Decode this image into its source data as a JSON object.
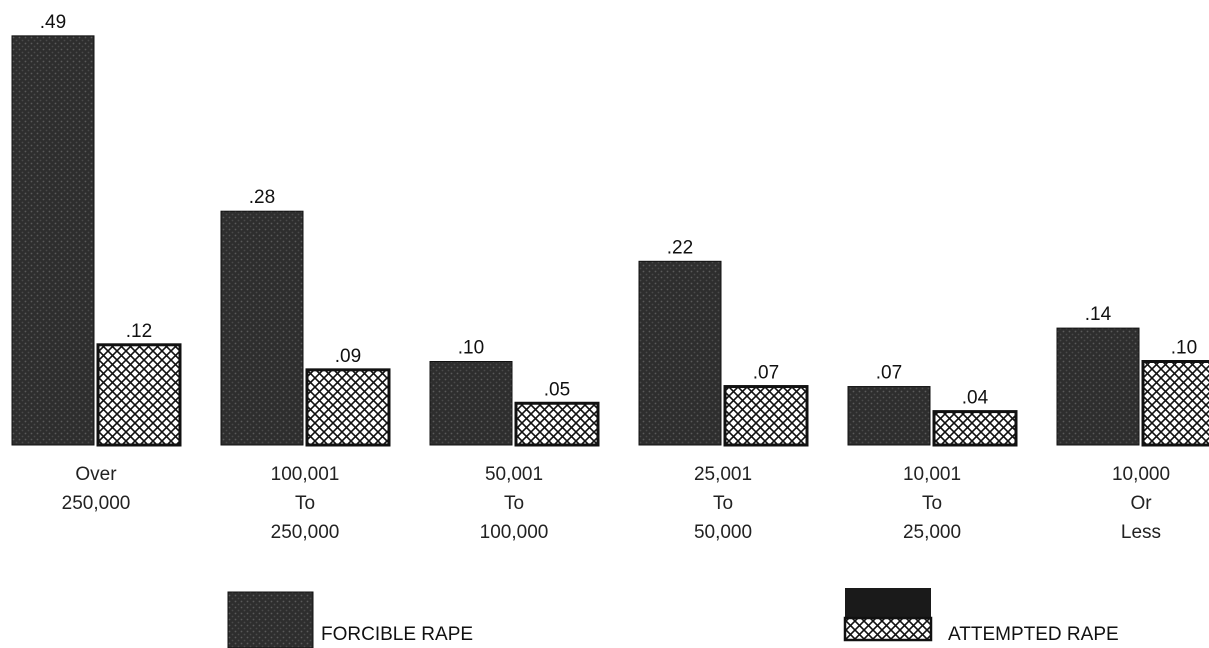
{
  "chart_data": {
    "type": "bar",
    "title": "",
    "xlabel": "",
    "ylabel": "",
    "ylim": [
      0,
      0.5
    ],
    "grid": false,
    "legend_placement": "bottom",
    "categories": [
      [
        "Over",
        "250,000"
      ],
      [
        "100,001",
        "To",
        "250,000"
      ],
      [
        "50,001",
        "To",
        "100,000"
      ],
      [
        "25,001",
        "To",
        "50,000"
      ],
      [
        "10,001",
        "To",
        "25,000"
      ],
      [
        "10,000",
        "Or",
        "Less"
      ]
    ],
    "series": [
      {
        "name": "FORCIBLE RAPE",
        "values": [
          0.49,
          0.28,
          0.1,
          0.22,
          0.07,
          0.14
        ],
        "labels": [
          ".49",
          ".28",
          ".10",
          ".22",
          ".07",
          ".14"
        ]
      },
      {
        "name": "ATTEMPTED RAPE",
        "values": [
          0.12,
          0.09,
          0.05,
          0.07,
          0.04,
          0.1
        ],
        "labels": [
          ".12",
          ".09",
          ".05",
          ".07",
          ".04",
          ".10"
        ]
      }
    ],
    "colors": {
      "forcible": "#2b2b2b",
      "attempted_fill": "#ffffff",
      "attempted_hatch": "#111111"
    }
  }
}
